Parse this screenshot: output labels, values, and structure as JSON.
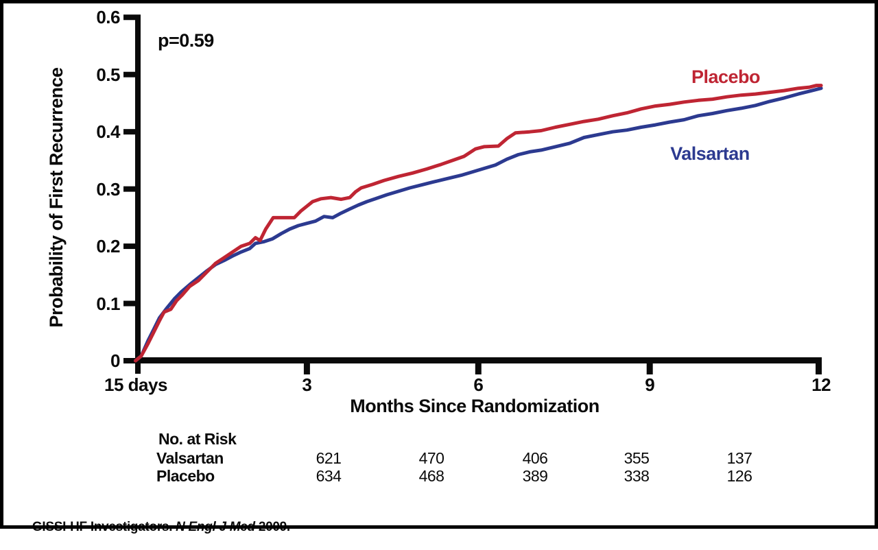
{
  "chart_data": {
    "type": "line",
    "subtype": "kaplan-meier-cumulative-incidence",
    "title": "",
    "xlabel": "Months Since Randomization",
    "ylabel": "Probability of First Recurrence",
    "xlim": [
      0,
      12
    ],
    "ylim": [
      0,
      0.6
    ],
    "grid": false,
    "x_ticks": [
      0,
      3,
      6,
      9,
      12
    ],
    "x_tick_labels": [
      "15 days",
      "3",
      "6",
      "9",
      "12"
    ],
    "y_ticks": [
      0,
      0.1,
      0.2,
      0.3,
      0.4,
      0.5,
      0.6
    ],
    "y_tick_labels": [
      "0",
      "0.1",
      "0.2",
      "0.3",
      "0.4",
      "0.5",
      "0.6"
    ],
    "annotations": {
      "p_value": "p=0.59"
    },
    "legend": {
      "position": "inline-curve-labels"
    },
    "colors": {
      "placebo": "#bf2533",
      "valsartan": "#2c3a90",
      "axis": "#0a0a0a"
    },
    "series": [
      {
        "name": "Placebo",
        "color": "#bf2533",
        "points": [
          [
            0,
            0
          ],
          [
            0.1,
            0.008
          ],
          [
            0.22,
            0.03
          ],
          [
            0.32,
            0.05
          ],
          [
            0.42,
            0.07
          ],
          [
            0.5,
            0.085
          ],
          [
            0.62,
            0.09
          ],
          [
            0.72,
            0.105
          ],
          [
            0.82,
            0.115
          ],
          [
            0.95,
            0.13
          ],
          [
            1.1,
            0.14
          ],
          [
            1.25,
            0.155
          ],
          [
            1.4,
            0.17
          ],
          [
            1.55,
            0.18
          ],
          [
            1.7,
            0.19
          ],
          [
            1.85,
            0.2
          ],
          [
            2.0,
            0.205
          ],
          [
            2.1,
            0.215
          ],
          [
            2.18,
            0.21
          ],
          [
            2.28,
            0.23
          ],
          [
            2.41,
            0.25
          ],
          [
            2.78,
            0.25
          ],
          [
            2.9,
            0.262
          ],
          [
            3.0,
            0.27
          ],
          [
            3.1,
            0.278
          ],
          [
            3.25,
            0.283
          ],
          [
            3.42,
            0.285
          ],
          [
            3.6,
            0.282
          ],
          [
            3.75,
            0.285
          ],
          [
            3.85,
            0.295
          ],
          [
            3.95,
            0.302
          ],
          [
            4.15,
            0.308
          ],
          [
            4.35,
            0.315
          ],
          [
            4.6,
            0.322
          ],
          [
            4.85,
            0.328
          ],
          [
            5.1,
            0.335
          ],
          [
            5.35,
            0.343
          ],
          [
            5.55,
            0.35
          ],
          [
            5.75,
            0.357
          ],
          [
            5.95,
            0.37
          ],
          [
            6.1,
            0.374
          ],
          [
            6.35,
            0.375
          ],
          [
            6.5,
            0.388
          ],
          [
            6.65,
            0.398
          ],
          [
            6.9,
            0.4
          ],
          [
            7.1,
            0.402
          ],
          [
            7.35,
            0.408
          ],
          [
            7.6,
            0.413
          ],
          [
            7.85,
            0.418
          ],
          [
            8.1,
            0.422
          ],
          [
            8.35,
            0.428
          ],
          [
            8.6,
            0.433
          ],
          [
            8.85,
            0.44
          ],
          [
            9.1,
            0.445
          ],
          [
            9.35,
            0.448
          ],
          [
            9.6,
            0.452
          ],
          [
            9.85,
            0.455
          ],
          [
            10.1,
            0.457
          ],
          [
            10.35,
            0.461
          ],
          [
            10.6,
            0.464
          ],
          [
            10.85,
            0.466
          ],
          [
            11.1,
            0.469
          ],
          [
            11.35,
            0.472
          ],
          [
            11.6,
            0.476
          ],
          [
            11.8,
            0.478
          ],
          [
            11.92,
            0.481
          ],
          [
            12,
            0.481
          ]
        ]
      },
      {
        "name": "Valsartan",
        "color": "#2c3a90",
        "points": [
          [
            0,
            0
          ],
          [
            0.1,
            0.008
          ],
          [
            0.22,
            0.035
          ],
          [
            0.32,
            0.055
          ],
          [
            0.42,
            0.075
          ],
          [
            0.55,
            0.092
          ],
          [
            0.68,
            0.108
          ],
          [
            0.8,
            0.12
          ],
          [
            0.95,
            0.133
          ],
          [
            1.1,
            0.145
          ],
          [
            1.25,
            0.157
          ],
          [
            1.4,
            0.168
          ],
          [
            1.55,
            0.175
          ],
          [
            1.7,
            0.183
          ],
          [
            1.85,
            0.19
          ],
          [
            2.0,
            0.196
          ],
          [
            2.1,
            0.205
          ],
          [
            2.25,
            0.208
          ],
          [
            2.4,
            0.213
          ],
          [
            2.55,
            0.222
          ],
          [
            2.7,
            0.23
          ],
          [
            2.85,
            0.236
          ],
          [
            3.0,
            0.24
          ],
          [
            3.15,
            0.244
          ],
          [
            3.3,
            0.252
          ],
          [
            3.45,
            0.25
          ],
          [
            3.6,
            0.258
          ],
          [
            3.75,
            0.265
          ],
          [
            3.9,
            0.272
          ],
          [
            4.05,
            0.278
          ],
          [
            4.2,
            0.283
          ],
          [
            4.4,
            0.29
          ],
          [
            4.6,
            0.296
          ],
          [
            4.8,
            0.302
          ],
          [
            5.0,
            0.307
          ],
          [
            5.2,
            0.312
          ],
          [
            5.45,
            0.318
          ],
          [
            5.7,
            0.324
          ],
          [
            5.9,
            0.33
          ],
          [
            6.1,
            0.336
          ],
          [
            6.3,
            0.342
          ],
          [
            6.5,
            0.352
          ],
          [
            6.7,
            0.36
          ],
          [
            6.9,
            0.365
          ],
          [
            7.1,
            0.368
          ],
          [
            7.35,
            0.374
          ],
          [
            7.6,
            0.38
          ],
          [
            7.85,
            0.39
          ],
          [
            8.1,
            0.395
          ],
          [
            8.35,
            0.4
          ],
          [
            8.6,
            0.403
          ],
          [
            8.85,
            0.408
          ],
          [
            9.1,
            0.412
          ],
          [
            9.35,
            0.417
          ],
          [
            9.6,
            0.421
          ],
          [
            9.85,
            0.428
          ],
          [
            10.1,
            0.432
          ],
          [
            10.35,
            0.437
          ],
          [
            10.6,
            0.441
          ],
          [
            10.85,
            0.446
          ],
          [
            11.1,
            0.453
          ],
          [
            11.35,
            0.459
          ],
          [
            11.6,
            0.466
          ],
          [
            11.8,
            0.471
          ],
          [
            12,
            0.476
          ]
        ]
      }
    ],
    "no_at_risk": {
      "title": "No. at Risk",
      "rows": [
        {
          "label": "Valsartan",
          "counts": [
            "621",
            "470",
            "406",
            "355",
            "137"
          ]
        },
        {
          "label": "Placebo",
          "counts": [
            "634",
            "468",
            "389",
            "338",
            "126"
          ]
        }
      ]
    },
    "citation": {
      "prefix": "GISSI-HF Investigators. ",
      "journal": "N Engl J Med",
      "suffix": " 2009."
    }
  }
}
